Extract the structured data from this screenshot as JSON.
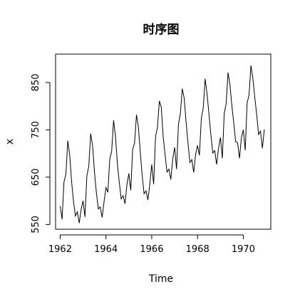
{
  "chart_data": {
    "type": "line",
    "title": "时序图",
    "xlabel": "Time",
    "ylabel": "x",
    "xlim": [
      1961.8,
      1971.2
    ],
    "ylim": [
      540,
      910
    ],
    "grid": false,
    "x_ticks": [
      1962,
      1964,
      1966,
      1968,
      1970
    ],
    "y_ticks": [
      550,
      650,
      750,
      850
    ],
    "series": [
      {
        "start": 1962,
        "frequency": 12,
        "values": [
          589,
          561,
          640,
          656,
          727,
          697,
          640,
          599,
          568,
          577,
          553,
          582,
          600,
          566,
          653,
          673,
          742,
          716,
          660,
          617,
          583,
          587,
          565,
          598,
          628,
          618,
          688,
          705,
          770,
          736,
          678,
          639,
          604,
          611,
          594,
          634,
          658,
          622,
          709,
          722,
          782,
          756,
          702,
          653,
          615,
          621,
          602,
          635,
          677,
          635,
          736,
          755,
          811,
          798,
          735,
          697,
          661,
          667,
          645,
          688,
          713,
          667,
          762,
          784,
          837,
          817,
          767,
          722,
          681,
          687,
          660,
          698,
          717,
          696,
          775,
          796,
          858,
          826,
          783,
          740,
          701,
          706,
          677,
          711,
          734,
          690,
          785,
          805,
          871,
          845,
          801,
          764,
          725,
          723,
          690,
          734,
          750,
          707,
          807,
          824,
          886,
          859,
          819,
          783,
          740,
          747,
          711,
          751
        ]
      }
    ]
  }
}
